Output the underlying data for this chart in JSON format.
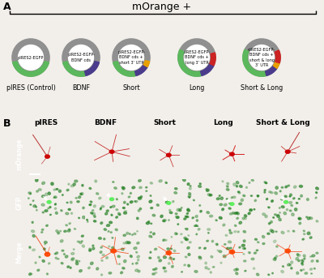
{
  "panel_A_label": "A",
  "panel_B_label": "B",
  "mOrange_label": "mOrange +",
  "bg_color": "#f2efea",
  "plasmid_labels": [
    "pIRES (Control)",
    "BDNF",
    "Short",
    "Long",
    "Short & Long"
  ],
  "plasmid_inner_labels": [
    "pIRES2-EGFP",
    "pIRES2-EGFP-\nBDNF cds",
    "pIRES2-EGFP-\nBDNF cds +\nshort 3’ UTR",
    "pIRES2-EGFP-\nBDNF cds +\nlong 3’ UTR",
    "pIRES2-EGFP-\nBDNF cds +\nshort & long\n3’ UTR"
  ],
  "col_labels_B": [
    "pIRES",
    "BDNF",
    "Short",
    "Long",
    "Short & Long"
  ],
  "row_labels_B": [
    "mOrange",
    "GFP",
    "Merge"
  ],
  "plasmid_ring_color": "#909090",
  "plasmid_segments": [
    [
      {
        "color": "#5cb85c",
        "theta1": 195,
        "theta2": 345
      }
    ],
    [
      {
        "color": "#5cb85c",
        "theta1": 195,
        "theta2": 285
      },
      {
        "color": "#4b3b8c",
        "theta1": 285,
        "theta2": 345
      }
    ],
    [
      {
        "color": "#5cb85c",
        "theta1": 195,
        "theta2": 285
      },
      {
        "color": "#4b3b8c",
        "theta1": 285,
        "theta2": 330
      },
      {
        "color": "#e8a000",
        "theta1": 330,
        "theta2": 348
      }
    ],
    [
      {
        "color": "#5cb85c",
        "theta1": 155,
        "theta2": 285
      },
      {
        "color": "#4b3b8c",
        "theta1": 285,
        "theta2": 335
      },
      {
        "color": "#cc2222",
        "theta1": 335,
        "theta2": 375
      }
    ],
    [
      {
        "color": "#5cb85c",
        "theta1": 155,
        "theta2": 285
      },
      {
        "color": "#4b3b8c",
        "theta1": 285,
        "theta2": 325
      },
      {
        "color": "#e8a000",
        "theta1": 325,
        "theta2": 343
      },
      {
        "color": "#cc2222",
        "theta1": 343,
        "theta2": 383
      }
    ]
  ],
  "row_strip_colors": [
    "#2a0000",
    "#002200",
    "#111100"
  ],
  "mOrange_bg": "#150000",
  "GFP_bg": "#001500",
  "Merge_bg": "#001100"
}
